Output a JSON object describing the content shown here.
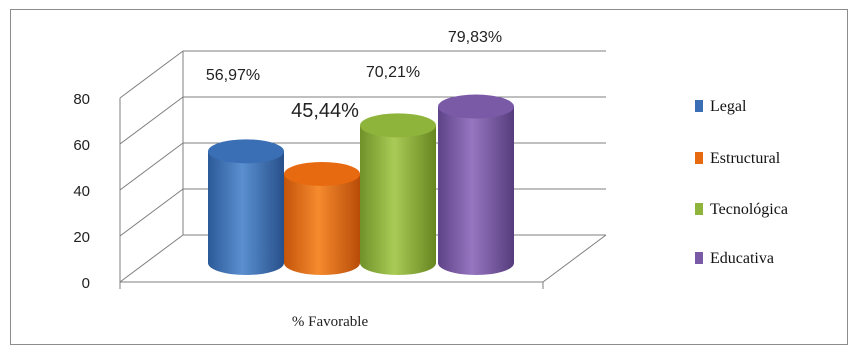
{
  "chart_data": {
    "type": "bar",
    "title": "",
    "xlabel": "",
    "ylabel": "",
    "ylim": [
      0,
      80
    ],
    "yticks": [
      "0",
      "20",
      "40",
      "60",
      "80"
    ],
    "categories": [
      "% Favorable"
    ],
    "grid": true,
    "legend_position": "right",
    "series": [
      {
        "name": "Legal",
        "values": [
          56.97
        ],
        "label": "56,97%",
        "color": "#3a6fb5"
      },
      {
        "name": "Estructural",
        "values": [
          45.44
        ],
        "label": "45,44%",
        "color": "#e86a10"
      },
      {
        "name": "Tecnológica",
        "values": [
          70.21
        ],
        "label": "70,21%",
        "color": "#8fb43c"
      },
      {
        "name": "Educativa",
        "values": [
          79.83
        ],
        "label": "79,83%",
        "color": "#7a5aa6"
      }
    ]
  }
}
